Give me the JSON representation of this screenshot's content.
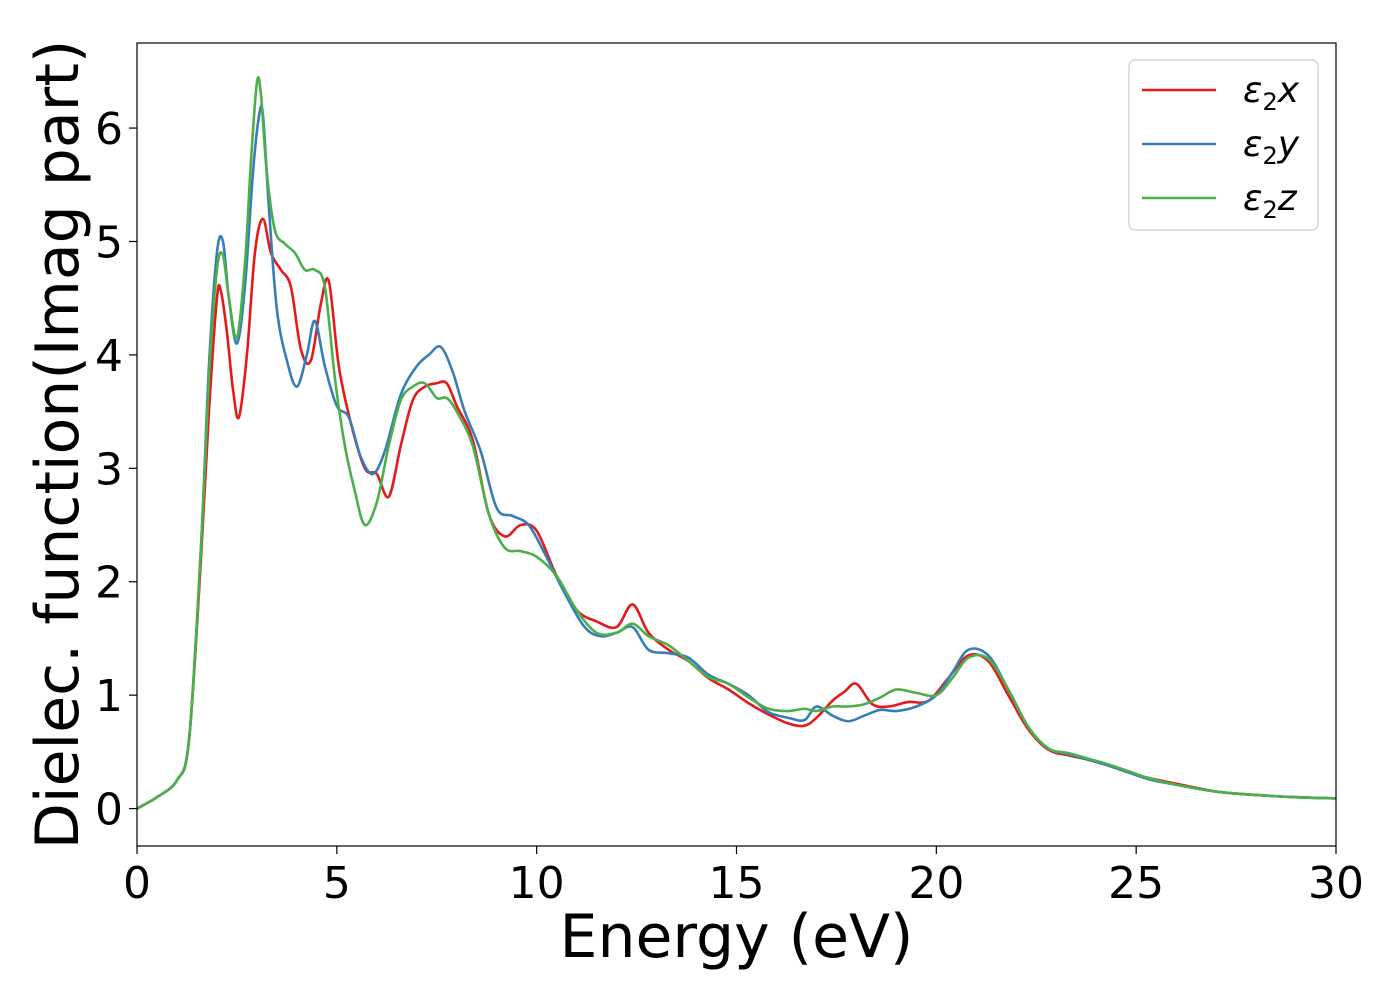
{
  "chart_data": {
    "type": "line",
    "xlabel": "Energy (eV)",
    "ylabel": "Dielec. function(Imag part)",
    "xlim": [
      0,
      30
    ],
    "ylim": [
      -0.33,
      6.75
    ],
    "xticks": [
      0,
      5,
      10,
      15,
      20,
      25,
      30
    ],
    "yticks": [
      0,
      1,
      2,
      3,
      4,
      5,
      6
    ],
    "grid": false,
    "legend_position": "top-right",
    "series": [
      {
        "name": "ε2x",
        "legend": {
          "base": "ε",
          "sub": "2",
          "tail": "x"
        },
        "color": "#e41a1c",
        "x": [
          0,
          0.5,
          1.0,
          1.3,
          1.6,
          1.8,
          2.0,
          2.1,
          2.25,
          2.4,
          2.55,
          2.75,
          2.95,
          3.15,
          3.35,
          3.6,
          3.85,
          4.1,
          4.35,
          4.6,
          4.8,
          5.05,
          5.35,
          5.7,
          6.0,
          6.3,
          6.6,
          6.9,
          7.2,
          7.5,
          7.75,
          8.0,
          8.4,
          8.8,
          9.2,
          9.6,
          10.0,
          10.5,
          11.0,
          11.5,
          12.0,
          12.4,
          12.8,
          13.3,
          13.8,
          14.3,
          14.8,
          15.3,
          15.8,
          16.3,
          16.7,
          17.0,
          17.4,
          17.7,
          18.0,
          18.4,
          18.8,
          19.3,
          19.8,
          20.3,
          20.8,
          21.3,
          21.8,
          22.3,
          22.8,
          23.3,
          23.8,
          24.3,
          24.8,
          25.3,
          26.0,
          27.0,
          28.0,
          29.0,
          30.0
        ],
        "y": [
          0.0,
          0.1,
          0.25,
          0.6,
          2.2,
          3.5,
          4.5,
          4.56,
          4.2,
          3.7,
          3.45,
          4.0,
          4.9,
          5.2,
          4.9,
          4.75,
          4.6,
          4.05,
          3.95,
          4.45,
          4.65,
          3.9,
          3.4,
          3.0,
          2.95,
          2.75,
          3.2,
          3.6,
          3.72,
          3.75,
          3.75,
          3.55,
          3.25,
          2.6,
          2.4,
          2.5,
          2.45,
          2.05,
          1.75,
          1.65,
          1.6,
          1.8,
          1.55,
          1.4,
          1.3,
          1.15,
          1.05,
          0.93,
          0.83,
          0.75,
          0.73,
          0.8,
          0.95,
          1.03,
          1.1,
          0.92,
          0.9,
          0.94,
          0.95,
          1.15,
          1.35,
          1.3,
          1.0,
          0.7,
          0.52,
          0.47,
          0.43,
          0.38,
          0.32,
          0.27,
          0.22,
          0.15,
          0.12,
          0.1,
          0.09
        ]
      },
      {
        "name": "ε2y",
        "legend": {
          "base": "ε",
          "sub": "2",
          "tail": "y"
        },
        "color": "#377eb8",
        "x": [
          0,
          0.5,
          1.0,
          1.3,
          1.6,
          1.8,
          2.0,
          2.15,
          2.3,
          2.5,
          2.7,
          2.9,
          3.05,
          3.15,
          3.3,
          3.5,
          3.75,
          4.0,
          4.25,
          4.45,
          4.7,
          5.0,
          5.3,
          5.6,
          5.9,
          6.2,
          6.6,
          7.0,
          7.3,
          7.6,
          7.9,
          8.2,
          8.6,
          9.0,
          9.4,
          9.8,
          10.2,
          10.7,
          11.2,
          11.6,
          12.0,
          12.4,
          12.8,
          13.3,
          13.8,
          14.3,
          14.8,
          15.3,
          15.8,
          16.3,
          16.7,
          17.0,
          17.4,
          17.8,
          18.2,
          18.6,
          19.0,
          19.5,
          20.0,
          20.4,
          20.8,
          21.3,
          21.8,
          22.3,
          22.8,
          23.3,
          23.8,
          24.3,
          24.8,
          25.3,
          26.0,
          27.0,
          28.0,
          29.0,
          30.0
        ],
        "y": [
          0.0,
          0.1,
          0.25,
          0.6,
          2.3,
          3.9,
          4.9,
          5.0,
          4.5,
          4.1,
          4.6,
          5.6,
          6.1,
          6.12,
          5.3,
          4.4,
          3.95,
          3.72,
          4.0,
          4.3,
          3.9,
          3.55,
          3.45,
          3.1,
          2.95,
          3.15,
          3.65,
          3.9,
          4.0,
          4.07,
          3.85,
          3.5,
          3.15,
          2.65,
          2.58,
          2.5,
          2.25,
          1.9,
          1.6,
          1.52,
          1.55,
          1.6,
          1.4,
          1.37,
          1.33,
          1.18,
          1.1,
          1.0,
          0.85,
          0.8,
          0.78,
          0.9,
          0.82,
          0.77,
          0.82,
          0.87,
          0.86,
          0.9,
          1.0,
          1.2,
          1.4,
          1.35,
          1.05,
          0.72,
          0.53,
          0.48,
          0.43,
          0.38,
          0.32,
          0.26,
          0.21,
          0.15,
          0.12,
          0.1,
          0.09
        ]
      },
      {
        "name": "ε2z",
        "legend": {
          "base": "ε",
          "sub": "2",
          "tail": "z"
        },
        "color": "#4daf4a",
        "x": [
          0,
          0.5,
          1.0,
          1.3,
          1.6,
          1.8,
          2.0,
          2.15,
          2.3,
          2.5,
          2.7,
          2.85,
          3.0,
          3.1,
          3.25,
          3.45,
          3.7,
          3.95,
          4.2,
          4.45,
          4.7,
          4.95,
          5.2,
          5.45,
          5.7,
          6.0,
          6.3,
          6.6,
          6.9,
          7.2,
          7.5,
          7.75,
          8.0,
          8.4,
          8.8,
          9.2,
          9.6,
          10.0,
          10.5,
          11.0,
          11.5,
          12.0,
          12.4,
          12.8,
          13.3,
          13.8,
          14.3,
          14.8,
          15.3,
          15.8,
          16.3,
          16.7,
          17.0,
          17.4,
          17.8,
          18.2,
          18.6,
          19.0,
          19.5,
          20.0,
          20.4,
          20.8,
          21.3,
          21.8,
          22.3,
          22.8,
          23.3,
          23.8,
          24.3,
          24.8,
          25.3,
          26.0,
          27.0,
          28.0,
          29.0,
          30.0
        ],
        "y": [
          0.0,
          0.1,
          0.25,
          0.6,
          2.3,
          3.8,
          4.75,
          4.88,
          4.5,
          4.15,
          4.8,
          5.7,
          6.4,
          6.3,
          5.6,
          5.1,
          4.98,
          4.9,
          4.75,
          4.75,
          4.6,
          3.8,
          3.2,
          2.8,
          2.5,
          2.7,
          3.2,
          3.6,
          3.72,
          3.75,
          3.62,
          3.62,
          3.5,
          3.2,
          2.6,
          2.3,
          2.27,
          2.22,
          2.05,
          1.75,
          1.55,
          1.55,
          1.63,
          1.52,
          1.44,
          1.3,
          1.16,
          1.1,
          0.98,
          0.88,
          0.86,
          0.88,
          0.86,
          0.9,
          0.9,
          0.92,
          0.98,
          1.05,
          1.02,
          1.0,
          1.15,
          1.33,
          1.32,
          1.05,
          0.72,
          0.53,
          0.49,
          0.44,
          0.39,
          0.33,
          0.27,
          0.21,
          0.15,
          0.12,
          0.1,
          0.09
        ]
      }
    ]
  }
}
